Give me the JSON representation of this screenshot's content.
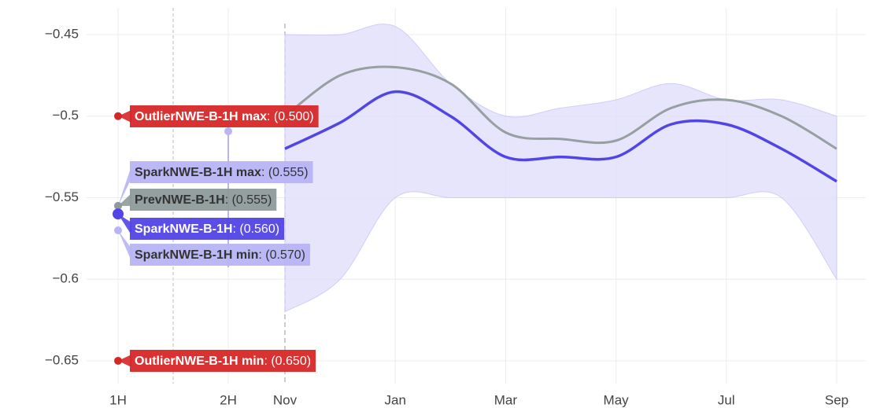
{
  "chart_data": [
    {
      "type": "hover",
      "categories": [
        "1H",
        "2H"
      ],
      "ylim": [
        -0.664,
        -0.4336
      ],
      "yticks": [
        {
          "value": -0.45,
          "label": "−0.45"
        },
        {
          "value": -0.5,
          "label": "−0.5"
        },
        {
          "value": -0.55,
          "label": "−0.55"
        },
        {
          "value": -0.6,
          "label": "−0.6"
        },
        {
          "value": -0.65,
          "label": "−0.65"
        }
      ],
      "grid": true,
      "series": [
        {
          "name": "OutlierNWE-B-1H max",
          "color": "#d62728",
          "values": [
            -0.5,
            null
          ],
          "value_labels": [
            ": (0.500)",
            null
          ]
        },
        {
          "name": "SparkNWE-B-1H max",
          "color": "#b8b4f6",
          "values": [
            -0.555,
            null
          ],
          "value_labels": [
            ": (0.555)",
            null
          ]
        },
        {
          "name": "PrevNWE-B-1H",
          "color": "#8e9b9b",
          "values": [
            -0.555,
            null
          ],
          "value_labels": [
            ": (0.555)",
            null
          ]
        },
        {
          "name": "SparkNWE-B-1H",
          "color": "#5145e6",
          "values": [
            -0.56,
            null
          ],
          "value_labels": [
            ": (0.560)",
            null
          ]
        },
        {
          "name": "SparkNWE-B-1H min",
          "color": "#b8b4f6",
          "values": [
            -0.57,
            null
          ],
          "value_labels": [
            ": (0.570)",
            null
          ]
        },
        {
          "name": "OutlierNWE-B-1H min",
          "color": "#d62728",
          "values": [
            -0.65,
            null
          ],
          "value_labels": [
            ": (0.650)",
            null
          ]
        }
      ]
    },
    {
      "type": "line",
      "categories": [
        "Nov",
        null,
        "Jan",
        null,
        "Mar",
        null,
        "May",
        null,
        "Jul",
        null,
        "Sep"
      ],
      "ylim": [
        -0.664,
        -0.4336
      ],
      "grid": true,
      "band": {
        "color": "#e3e1fc",
        "upper": [
          -0.45,
          -0.45,
          -0.445,
          -0.48,
          -0.5,
          -0.495,
          -0.49,
          -0.48,
          -0.49,
          -0.49,
          -0.5
        ],
        "lower": [
          -0.62,
          -0.6,
          -0.55,
          -0.55,
          -0.55,
          -0.55,
          -0.55,
          -0.55,
          -0.55,
          -0.55,
          -0.6
        ]
      },
      "series": [
        {
          "name": "PrevNWE-B-1H",
          "color": "#97a0a0",
          "values": [
            -0.5,
            -0.475,
            -0.47,
            -0.48,
            -0.51,
            -0.514,
            -0.515,
            -0.495,
            -0.49,
            -0.5,
            -0.52
          ]
        },
        {
          "name": "SparkNWE-B-1H",
          "color": "#5145e6",
          "values": [
            -0.52,
            -0.504,
            -0.485,
            -0.5,
            -0.525,
            -0.525,
            -0.525,
            -0.505,
            -0.505,
            -0.52,
            -0.54
          ]
        }
      ]
    }
  ]
}
